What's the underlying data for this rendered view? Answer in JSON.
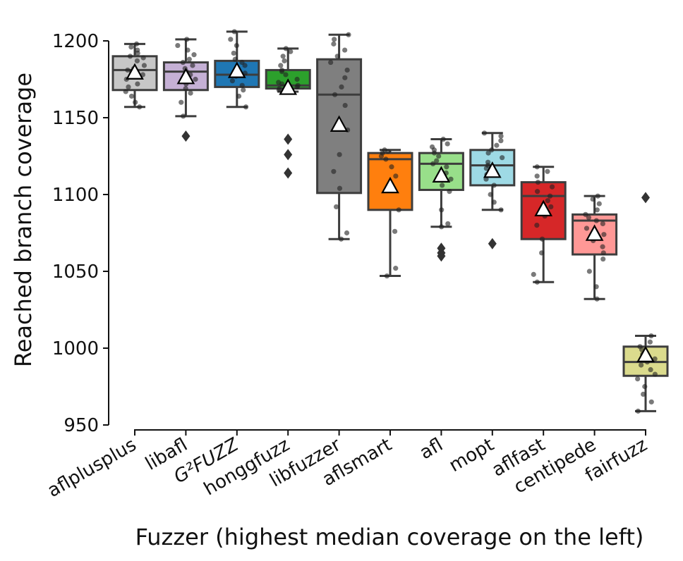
{
  "chart_data": {
    "type": "box",
    "title": "",
    "xlabel": "Fuzzer (highest median coverage on the left)",
    "ylabel": "Reached branch coverage",
    "ylim": [
      950,
      1200
    ],
    "yticks": [
      950,
      1000,
      1050,
      1100,
      1150,
      1200
    ],
    "categories": [
      {
        "label": "aflplusplus",
        "color": "#c7c7c7",
        "whisker_low": 1157,
        "q1": 1168,
        "median": 1181,
        "q3": 1190,
        "whisker_high": 1198,
        "mean": 1179,
        "outliers": [],
        "points": [
          1157,
          1160,
          1164,
          1167,
          1170,
          1172,
          1175,
          1178,
          1180,
          1181,
          1182,
          1184,
          1187,
          1189,
          1190,
          1192,
          1194,
          1196,
          1198
        ]
      },
      {
        "label": "libafl",
        "color": "#c5b0d5",
        "whisker_low": 1151,
        "q1": 1168,
        "median": 1180,
        "q3": 1186,
        "whisker_high": 1201,
        "mean": 1176,
        "outliers": [
          1138
        ],
        "points": [
          1151,
          1160,
          1166,
          1169,
          1172,
          1175,
          1178,
          1180,
          1182,
          1184,
          1186,
          1188,
          1191,
          1194,
          1197,
          1201
        ]
      },
      {
        "label": "G²FUZZ",
        "color": "#1f77b4",
        "whisker_low": 1157,
        "q1": 1170,
        "median": 1178,
        "q3": 1187,
        "whisker_high": 1206,
        "mean": 1180,
        "outliers": [],
        "points": [
          1157,
          1164,
          1168,
          1171,
          1174,
          1177,
          1179,
          1181,
          1184,
          1186,
          1188,
          1192,
          1197,
          1201,
          1206
        ]
      },
      {
        "label": "honggfuzz",
        "color": "#2ca02c",
        "whisker_low": 1167,
        "q1": 1169,
        "median": 1171,
        "q3": 1181,
        "whisker_high": 1195,
        "mean": 1169,
        "outliers": [
          1136,
          1126,
          1114
        ],
        "points": [
          1167,
          1168,
          1169,
          1170,
          1171,
          1172,
          1173,
          1175,
          1178,
          1180,
          1181,
          1184,
          1187,
          1190,
          1193,
          1195
        ]
      },
      {
        "label": "libfuzzer",
        "color": "#7f7f7f",
        "whisker_low": 1071,
        "q1": 1101,
        "median": 1165,
        "q3": 1188,
        "whisker_high": 1204,
        "mean": 1145,
        "outliers": [],
        "points": [
          1071,
          1075,
          1092,
          1104,
          1115,
          1126,
          1142,
          1158,
          1165,
          1170,
          1176,
          1181,
          1186,
          1190,
          1194,
          1198,
          1201,
          1204
        ]
      },
      {
        "label": "aflsmart",
        "color": "#ff7f0e",
        "whisker_low": 1047,
        "q1": 1090,
        "median": 1123,
        "q3": 1127,
        "whisker_high": 1129,
        "mean": 1105,
        "outliers": [],
        "points": [
          1047,
          1052,
          1076,
          1090,
          1103,
          1112,
          1118,
          1123,
          1125,
          1127,
          1128,
          1129
        ]
      },
      {
        "label": "afl",
        "color": "#98df8a",
        "whisker_low": 1079,
        "q1": 1103,
        "median": 1120,
        "q3": 1127,
        "whisker_high": 1136,
        "mean": 1112,
        "outliers": [
          1065,
          1062,
          1060
        ],
        "points": [
          1079,
          1081,
          1090,
          1102,
          1106,
          1110,
          1114,
          1118,
          1120,
          1122,
          1125,
          1127,
          1129,
          1131,
          1133,
          1136
        ]
      },
      {
        "label": "mopt",
        "color": "#9edae5",
        "whisker_low": 1090,
        "q1": 1106,
        "median": 1119,
        "q3": 1129,
        "whisker_high": 1140,
        "mean": 1115,
        "outliers": [
          1068
        ],
        "points": [
          1090,
          1095,
          1100,
          1106,
          1110,
          1113,
          1117,
          1119,
          1121,
          1124,
          1127,
          1129,
          1132,
          1135,
          1138,
          1140
        ]
      },
      {
        "label": "aflfast",
        "color": "#d62728",
        "whisker_low": 1043,
        "q1": 1071,
        "median": 1099,
        "q3": 1108,
        "whisker_high": 1118,
        "mean": 1090,
        "outliers": [],
        "points": [
          1043,
          1048,
          1062,
          1071,
          1080,
          1086,
          1092,
          1096,
          1099,
          1102,
          1105,
          1108,
          1112,
          1115,
          1118
        ]
      },
      {
        "label": "centipede",
        "color": "#ff9896",
        "whisker_low": 1032,
        "q1": 1061,
        "median": 1083,
        "q3": 1087,
        "whisker_high": 1099,
        "mean": 1074,
        "outliers": [],
        "points": [
          1032,
          1040,
          1050,
          1058,
          1062,
          1066,
          1070,
          1074,
          1078,
          1081,
          1083,
          1085,
          1087,
          1090,
          1094,
          1097,
          1099
        ]
      },
      {
        "label": "fairfuzz",
        "color": "#dbdb8d",
        "whisker_low": 959,
        "q1": 982,
        "median": 991,
        "q3": 1001,
        "whisker_high": 1008,
        "mean": 995,
        "outliers": [
          1098
        ],
        "points": [
          959,
          965,
          970,
          975,
          980,
          983,
          986,
          989,
          991,
          993,
          996,
          999,
          1001,
          1004,
          1008
        ]
      }
    ]
  }
}
